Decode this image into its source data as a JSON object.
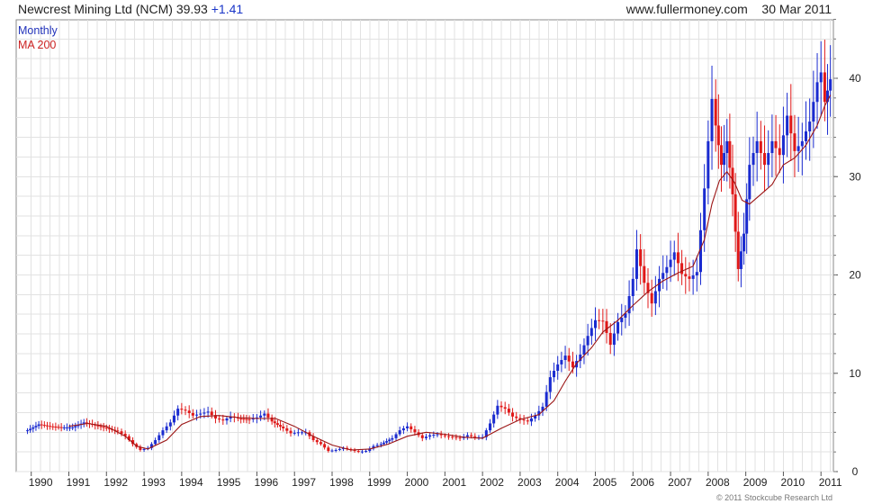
{
  "header": {
    "title": "Newcrest Mining Ltd (NCM) 39.93",
    "change": "+1.41",
    "source": "www.fullermoney.com",
    "date": "30 Mar 2011"
  },
  "legend": {
    "series1": "Monthly",
    "series2": "MA 200"
  },
  "footer": {
    "copyright": "© 2011 Stockcube Research Ltd"
  },
  "colors": {
    "up": "#1a2bd0",
    "down": "#e01818",
    "ma": "#9b1515",
    "grid": "#e2e2e2"
  },
  "chart_data": {
    "type": "line",
    "title": "Newcrest Mining Ltd (NCM) 39.93 +1.41",
    "frequency": "Monthly",
    "x_tick_labels": [
      "1990",
      "1991",
      "1992",
      "1993",
      "1994",
      "1995",
      "1996",
      "1997",
      "1998",
      "1999",
      "2000",
      "2001",
      "2002",
      "2003",
      "2004",
      "2005",
      "2006",
      "2007",
      "2008",
      "2009",
      "2010",
      "2011"
    ],
    "y_tick_labels": [
      "0",
      "10",
      "20",
      "30",
      "40"
    ],
    "xlim": [
      1989.8,
      2011.3
    ],
    "ylim": [
      0,
      46
    ],
    "grid": true,
    "legend_position": "top-left",
    "series": [
      {
        "name": "Monthly",
        "values": [
          [
            1989.9,
            4.2
          ],
          [
            1990.2,
            4.8
          ],
          [
            1990.5,
            4.6
          ],
          [
            1990.8,
            4.5
          ],
          [
            1991.1,
            4.5
          ],
          [
            1991.4,
            5.0
          ],
          [
            1991.7,
            4.7
          ],
          [
            1992.0,
            4.4
          ],
          [
            1992.3,
            4.1
          ],
          [
            1992.5,
            3.6
          ],
          [
            1992.7,
            2.8
          ],
          [
            1992.9,
            2.2
          ],
          [
            1993.1,
            2.4
          ],
          [
            1993.3,
            3.2
          ],
          [
            1993.5,
            4.2
          ],
          [
            1993.7,
            5.0
          ],
          [
            1993.9,
            6.4
          ],
          [
            1994.1,
            6.2
          ],
          [
            1994.3,
            5.7
          ],
          [
            1994.5,
            5.9
          ],
          [
            1994.7,
            6.1
          ],
          [
            1994.9,
            5.4
          ],
          [
            1995.1,
            5.2
          ],
          [
            1995.3,
            5.6
          ],
          [
            1995.5,
            5.4
          ],
          [
            1995.8,
            5.3
          ],
          [
            1996.0,
            5.5
          ],
          [
            1996.2,
            5.9
          ],
          [
            1996.4,
            5.1
          ],
          [
            1996.7,
            4.4
          ],
          [
            1996.9,
            3.9
          ],
          [
            1997.1,
            4.0
          ],
          [
            1997.3,
            4.0
          ],
          [
            1997.5,
            3.2
          ],
          [
            1997.7,
            2.8
          ],
          [
            1997.9,
            2.1
          ],
          [
            1998.1,
            2.2
          ],
          [
            1998.3,
            2.4
          ],
          [
            1998.5,
            2.2
          ],
          [
            1998.7,
            2.0
          ],
          [
            1998.9,
            2.1
          ],
          [
            1999.1,
            2.6
          ],
          [
            1999.3,
            2.8
          ],
          [
            1999.6,
            3.4
          ],
          [
            1999.8,
            4.2
          ],
          [
            2000.0,
            4.6
          ],
          [
            2000.2,
            4.0
          ],
          [
            2000.4,
            3.4
          ],
          [
            2000.6,
            3.7
          ],
          [
            2000.8,
            3.8
          ],
          [
            2001.0,
            3.6
          ],
          [
            2001.2,
            3.5
          ],
          [
            2001.4,
            3.4
          ],
          [
            2001.6,
            3.7
          ],
          [
            2001.8,
            3.5
          ],
          [
            2002.0,
            3.5
          ],
          [
            2002.2,
            4.9
          ],
          [
            2002.4,
            6.7
          ],
          [
            2002.6,
            6.4
          ],
          [
            2002.8,
            5.6
          ],
          [
            2003.0,
            5.3
          ],
          [
            2003.2,
            5.1
          ],
          [
            2003.4,
            5.7
          ],
          [
            2003.6,
            6.6
          ],
          [
            2003.8,
            9.6
          ],
          [
            2004.0,
            10.9
          ],
          [
            2004.2,
            11.8
          ],
          [
            2004.4,
            10.6
          ],
          [
            2004.6,
            11.9
          ],
          [
            2004.8,
            13.8
          ],
          [
            2005.0,
            15.4
          ],
          [
            2005.2,
            15.3
          ],
          [
            2005.4,
            12.9
          ],
          [
            2005.6,
            15.2
          ],
          [
            2005.8,
            16.1
          ],
          [
            2006.0,
            19.6
          ],
          [
            2006.1,
            22.6
          ],
          [
            2006.3,
            19.2
          ],
          [
            2006.5,
            17.1
          ],
          [
            2006.7,
            19.6
          ],
          [
            2006.9,
            20.8
          ],
          [
            2007.1,
            22.3
          ],
          [
            2007.3,
            20.1
          ],
          [
            2007.5,
            19.6
          ],
          [
            2007.7,
            20.3
          ],
          [
            2007.9,
            28.8
          ],
          [
            2008.0,
            33.6
          ],
          [
            2008.1,
            37.9
          ],
          [
            2008.2,
            35.2
          ],
          [
            2008.35,
            31.2
          ],
          [
            2008.5,
            33.6
          ],
          [
            2008.65,
            28.2
          ],
          [
            2008.8,
            20.6
          ],
          [
            2008.95,
            24.2
          ],
          [
            2009.1,
            31.2
          ],
          [
            2009.3,
            33.6
          ],
          [
            2009.5,
            31.2
          ],
          [
            2009.7,
            33.6
          ],
          [
            2009.9,
            32.2
          ],
          [
            2010.1,
            36.2
          ],
          [
            2010.3,
            32.6
          ],
          [
            2010.5,
            33.6
          ],
          [
            2010.7,
            35.6
          ],
          [
            2010.9,
            39.6
          ],
          [
            2011.0,
            40.6
          ],
          [
            2011.1,
            37.6
          ],
          [
            2011.25,
            39.9
          ]
        ]
      },
      {
        "name": "MA 200",
        "values": [
          [
            1991.0,
            4.6
          ],
          [
            1991.5,
            4.9
          ],
          [
            1992.0,
            4.6
          ],
          [
            1992.5,
            3.6
          ],
          [
            1992.8,
            2.6
          ],
          [
            1993.1,
            2.3
          ],
          [
            1993.6,
            3.2
          ],
          [
            1994.0,
            4.8
          ],
          [
            1994.5,
            5.6
          ],
          [
            1995.0,
            5.7
          ],
          [
            1995.5,
            5.5
          ],
          [
            1996.0,
            5.4
          ],
          [
            1996.5,
            5.4
          ],
          [
            1997.0,
            4.6
          ],
          [
            1997.5,
            3.6
          ],
          [
            1998.0,
            2.7
          ],
          [
            1998.5,
            2.2
          ],
          [
            1999.0,
            2.3
          ],
          [
            1999.5,
            2.8
          ],
          [
            2000.0,
            3.6
          ],
          [
            2000.5,
            4.0
          ],
          [
            2001.0,
            3.8
          ],
          [
            2001.5,
            3.5
          ],
          [
            2002.0,
            3.4
          ],
          [
            2002.5,
            4.4
          ],
          [
            2003.0,
            5.3
          ],
          [
            2003.5,
            5.8
          ],
          [
            2003.9,
            7.2
          ],
          [
            2004.2,
            9.2
          ],
          [
            2004.5,
            11.0
          ],
          [
            2004.9,
            12.6
          ],
          [
            2005.2,
            14.2
          ],
          [
            2005.6,
            15.4
          ],
          [
            2006.0,
            16.9
          ],
          [
            2006.4,
            18.3
          ],
          [
            2006.8,
            19.4
          ],
          [
            2007.2,
            20.2
          ],
          [
            2007.6,
            20.9
          ],
          [
            2007.9,
            23.6
          ],
          [
            2008.1,
            27.2
          ],
          [
            2008.3,
            29.6
          ],
          [
            2008.5,
            30.5
          ],
          [
            2008.7,
            29.4
          ],
          [
            2008.9,
            27.6
          ],
          [
            2009.1,
            27.2
          ],
          [
            2009.4,
            28.2
          ],
          [
            2009.7,
            29.2
          ],
          [
            2010.0,
            31.2
          ],
          [
            2010.3,
            31.9
          ],
          [
            2010.6,
            33.2
          ],
          [
            2010.9,
            35.2
          ],
          [
            2011.1,
            37.2
          ],
          [
            2011.25,
            38.3
          ]
        ]
      }
    ]
  }
}
